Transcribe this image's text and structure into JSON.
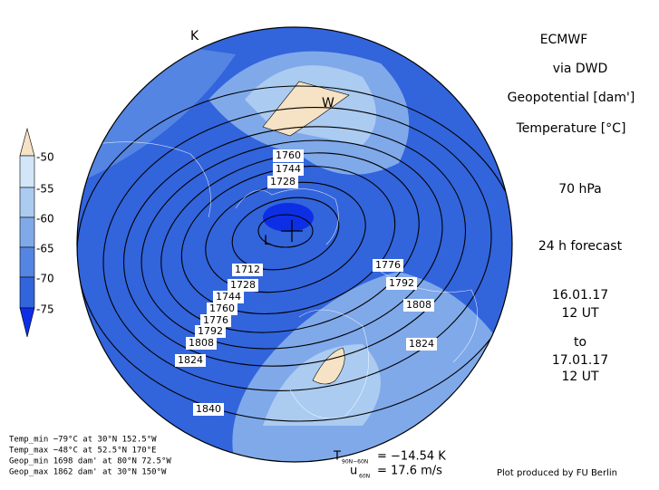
{
  "header": {
    "title": "ECMWF",
    "source": "via DWD",
    "field1": "Geopotential [dam']",
    "field2": "Temperature [°C]",
    "level": "70 hPa",
    "forecast": "24 h forecast",
    "from_date": "16.01.17",
    "from_time": "12 UT",
    "to": "to",
    "to_date": "17.01.17",
    "to_time": "12 UT"
  },
  "legend": {
    "labels": [
      "-50",
      "-55",
      "-60",
      "-65",
      "-70",
      "-75"
    ],
    "colors": [
      "#f6e2c4",
      "#d2e6f8",
      "#abcbf1",
      "#80a9ea",
      "#5585e3",
      "#3264dc",
      "#0c2fe6"
    ]
  },
  "map": {
    "markers": {
      "warm": "W",
      "cold": "L",
      "warm2": "K"
    },
    "contour_labels": [
      "1760",
      "1744",
      "1728",
      "1712",
      "1728",
      "1744",
      "1760",
      "1776",
      "1792",
      "1808",
      "1824",
      "1840",
      "1776",
      "1792",
      "1808",
      "1824"
    ]
  },
  "stats": [
    "Temp_min −79°C at 30°N 152.5°W",
    "Temp_max −48°C at 52.5°N 170°E",
    "Geop_min 1698 dam' at 80°N 72.5°W",
    "Geop_max 1862 dam' at 30°N 150°W"
  ],
  "footer": {
    "t_symbol": "T",
    "t_sub": "90N−60N",
    "t_value": "= −14.54 K",
    "u_symbol": "u",
    "u_sub": "60N",
    "u_value": "= 17.6 m/s",
    "credit": "Plot produced by FU Berlin"
  }
}
